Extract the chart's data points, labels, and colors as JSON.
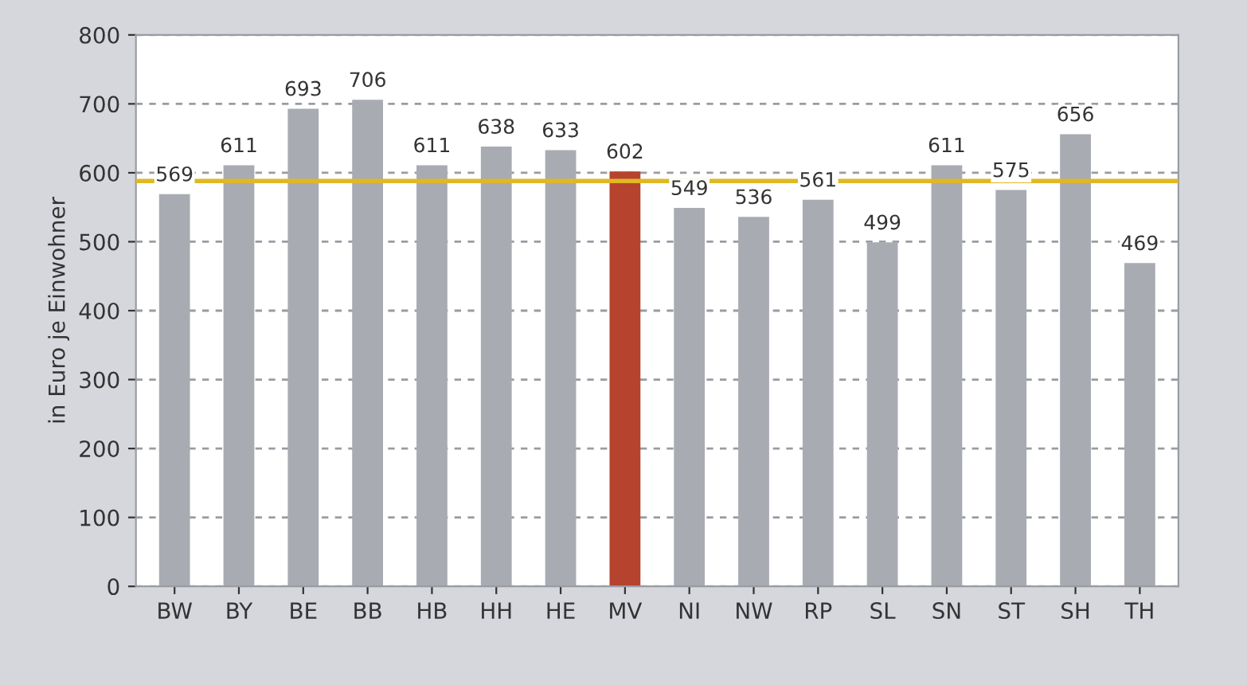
{
  "chart_data": {
    "type": "bar",
    "ylabel": "in Euro je Einwohner",
    "categories": [
      "BW",
      "BY",
      "BE",
      "BB",
      "HB",
      "HH",
      "HE",
      "MV",
      "NI",
      "NW",
      "RP",
      "SL",
      "SN",
      "ST",
      "SH",
      "TH"
    ],
    "values": [
      569,
      611,
      693,
      706,
      611,
      638,
      633,
      602,
      549,
      536,
      561,
      499,
      611,
      575,
      656,
      469
    ],
    "colors": [
      "#a9abb3",
      "#a9abb3",
      "#a9abb3",
      "#a9abb3",
      "#a9abb3",
      "#a9abb3",
      "#a9abb3",
      "#b5432d",
      "#a9abb3",
      "#a9abb3",
      "#a9abb3",
      "#a9abb3",
      "#a9abb3",
      "#a9abb3",
      "#a9abb3",
      "#a9abb3"
    ],
    "ylim": [
      0,
      800
    ],
    "yticks": [
      0,
      100,
      200,
      300,
      400,
      500,
      600,
      700,
      800
    ],
    "ref_lines": [
      {
        "axis": "y",
        "value": 588,
        "color": "#e0b824",
        "line_style": "solid"
      }
    ],
    "data_labels": true,
    "grid": "y",
    "legend": false
  }
}
